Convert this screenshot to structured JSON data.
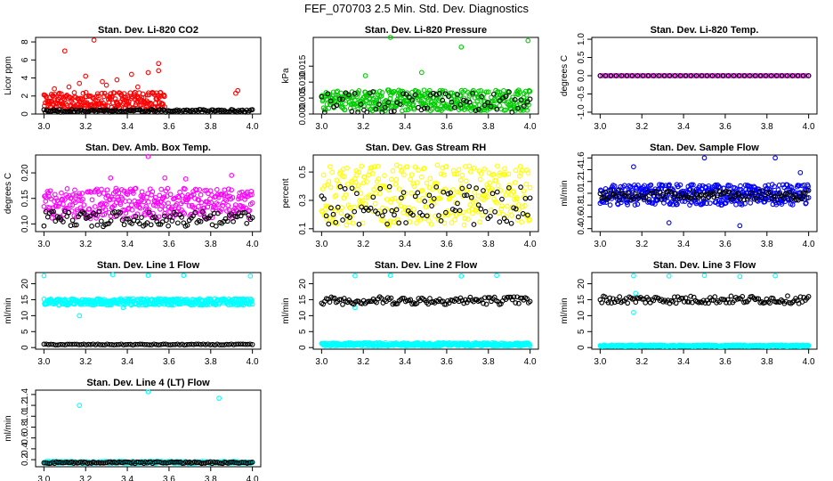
{
  "figure_title": "FEF_070703  2.5 Min. Std. Dev. Diagnostics",
  "colors": {
    "co2": "#ff0000",
    "pressure": "#00cc00",
    "temp": "#ff00ff",
    "boxtemp": "#ff00ff",
    "rh": "#ffff00",
    "flow": "#0000ff",
    "line": "#00ffff",
    "reference": "#000000"
  },
  "chart_data": [
    {
      "id": "p1",
      "type": "scatter",
      "title": "Stan. Dev. Li-820 CO2",
      "ylabel": "Licor ppm",
      "xlim": [
        3.0,
        4.0
      ],
      "xticks": [
        3.0,
        3.2,
        3.4,
        3.6,
        3.8,
        4.0
      ],
      "xtick_labels": [
        "3.0",
        "3.2",
        "3.4",
        "3.6",
        "3.8",
        "4.0"
      ],
      "ylim": [
        0,
        8.5
      ],
      "yticks": [
        0,
        2,
        4,
        6,
        8
      ],
      "ytick_labels": [
        "0",
        "2",
        "4",
        "6",
        "8"
      ],
      "color_key": "co2",
      "series": [
        {
          "color_key": "co2",
          "points": [
            [
              3.1,
              7.0
            ],
            [
              3.24,
              8.2
            ],
            [
              3.17,
              3.4
            ],
            [
              3.2,
              4.2
            ],
            [
              3.28,
              3.6
            ],
            [
              3.35,
              3.8
            ],
            [
              3.42,
              4.4
            ],
            [
              3.5,
              4.6
            ],
            [
              3.55,
              5.6
            ],
            [
              3.55,
              4.8
            ],
            [
              3.92,
              2.3
            ],
            [
              3.93,
              2.6
            ],
            [
              3.05,
              2.8
            ],
            [
              3.12,
              3.0
            ],
            [
              3.3,
              3.2
            ],
            [
              3.45,
              3.0
            ]
          ],
          "band": {
            "x_start": 3.0,
            "x_end": 3.58,
            "y_low": 0.4,
            "y_high": 2.4,
            "n": 260
          }
        },
        {
          "color_key": "reference",
          "band": {
            "x_start": 3.0,
            "x_end": 4.0,
            "y_low": 0.2,
            "y_high": 0.5,
            "n": 150
          }
        }
      ]
    },
    {
      "id": "p2",
      "type": "scatter",
      "title": "Stan. Dev. Li-820 Pressure",
      "ylabel": "kPa",
      "xlim": [
        3.0,
        4.0
      ],
      "xticks": [
        3.0,
        3.2,
        3.4,
        3.6,
        3.8,
        4.0
      ],
      "xtick_labels": [
        "3.0",
        "3.2",
        "3.4",
        "3.6",
        "3.8",
        "4.0"
      ],
      "ylim": [
        0,
        0.024
      ],
      "yticks": [
        0.0,
        0.005,
        0.01,
        0.015
      ],
      "ytick_labels": [
        "0.000",
        "0.005",
        "0.010",
        "0.015"
      ],
      "series": [
        {
          "color_key": "pressure",
          "points": [
            [
              3.33,
              0.024
            ],
            [
              3.48,
              0.013
            ],
            [
              3.67,
              0.021
            ],
            [
              3.99,
              0.023
            ],
            [
              3.21,
              0.012
            ]
          ],
          "band": {
            "x_start": 3.0,
            "x_end": 4.0,
            "y_low": 0.001,
            "y_high": 0.0075,
            "n": 420
          }
        },
        {
          "color_key": "reference",
          "band": {
            "x_start": 3.0,
            "x_end": 4.0,
            "y_low": 0.0005,
            "y_high": 0.007,
            "n": 70
          }
        }
      ]
    },
    {
      "id": "p3",
      "type": "scatter",
      "title": "Stan. Dev. Li-820 Temp.",
      "ylabel": "degrees C",
      "xlim": [
        3.0,
        4.0
      ],
      "xticks": [
        3.0,
        3.2,
        3.4,
        3.6,
        3.8,
        4.0
      ],
      "xtick_labels": [
        "3.0",
        "3.2",
        "3.4",
        "3.6",
        "3.8",
        "4.0"
      ],
      "ylim": [
        -1.05,
        1.05
      ],
      "yticks": [
        -1.0,
        -0.5,
        0.0,
        0.5,
        1.0
      ],
      "ytick_labels": [
        "-1.0",
        "-0.5",
        "0.0",
        "0.5",
        "1.0"
      ],
      "series": [
        {
          "color_key": "temp",
          "band": {
            "x_start": 3.0,
            "x_end": 4.0,
            "y_low": 0.0,
            "y_high": 0.0,
            "n": 90
          }
        },
        {
          "color_key": "reference",
          "band": {
            "x_start": 3.0,
            "x_end": 4.0,
            "y_low": 0.0,
            "y_high": 0.0,
            "n": 40
          }
        }
      ]
    },
    {
      "id": "p4",
      "type": "scatter",
      "title": "Stan. Dev. Amb. Box Temp.",
      "ylabel": "degrees C",
      "xlim": [
        3.0,
        4.0
      ],
      "xticks": [
        3.0,
        3.2,
        3.4,
        3.6,
        3.8,
        4.0
      ],
      "xtick_labels": [
        "3.0",
        "3.2",
        "3.4",
        "3.6",
        "3.8",
        "4.0"
      ],
      "ylim": [
        0.085,
        0.235
      ],
      "yticks": [
        0.1,
        0.15,
        0.2
      ],
      "ytick_labels": [
        "0.10",
        "0.15",
        "0.20"
      ],
      "series": [
        {
          "color_key": "boxtemp",
          "points": [
            [
              3.5,
              0.232
            ],
            [
              3.9,
              0.195
            ],
            [
              3.32,
              0.19
            ],
            [
              3.68,
              0.188
            ],
            [
              3.58,
              0.19
            ]
          ],
          "band": {
            "x_start": 3.0,
            "x_end": 4.0,
            "y_low": 0.11,
            "y_high": 0.17,
            "n": 360
          }
        },
        {
          "color_key": "reference",
          "band": {
            "x_start": 3.0,
            "x_end": 4.0,
            "y_low": 0.095,
            "y_high": 0.125,
            "n": 110
          }
        }
      ]
    },
    {
      "id": "p5",
      "type": "scatter",
      "title": "Stan. Dev. Gas Stream RH",
      "ylabel": "percent",
      "xlim": [
        3.0,
        4.0
      ],
      "xticks": [
        3.0,
        3.2,
        3.4,
        3.6,
        3.8,
        4.0
      ],
      "xtick_labels": [
        "3.0",
        "3.2",
        "3.4",
        "3.6",
        "3.8",
        "4.0"
      ],
      "ylim": [
        0.08,
        0.62
      ],
      "yticks": [
        0.1,
        0.3,
        0.5
      ],
      "ytick_labels": [
        "0.1",
        "0.3",
        "0.5"
      ],
      "series": [
        {
          "color_key": "rh",
          "band": {
            "x_start": 3.0,
            "x_end": 4.0,
            "y_low": 0.12,
            "y_high": 0.55,
            "n": 320
          }
        },
        {
          "color_key": "reference",
          "band": {
            "x_start": 3.0,
            "x_end": 4.0,
            "y_low": 0.13,
            "y_high": 0.4,
            "n": 90
          }
        }
      ]
    },
    {
      "id": "p6",
      "type": "scatter",
      "title": "Stan. Dev. Sample Flow",
      "ylabel": "ml/min",
      "xlim": [
        3.0,
        4.0
      ],
      "xticks": [
        3.0,
        3.2,
        3.4,
        3.6,
        3.8,
        4.0
      ],
      "xtick_labels": [
        "3.0",
        "3.2",
        "3.4",
        "3.6",
        "3.8",
        "4.0"
      ],
      "ylim": [
        0.35,
        1.65
      ],
      "yticks": [
        0.4,
        0.6,
        0.8,
        1.0,
        1.2,
        1.4,
        1.6
      ],
      "ytick_labels": [
        "0.4",
        "0.6",
        "0.8",
        "1.0",
        "1.2",
        "1.4",
        "1.6"
      ],
      "series": [
        {
          "color_key": "flow",
          "points": [
            [
              3.16,
              1.45
            ],
            [
              3.5,
              1.6
            ],
            [
              3.84,
              1.6
            ],
            [
              3.67,
              0.45
            ],
            [
              3.33,
              0.5
            ],
            [
              3.96,
              1.35
            ]
          ],
          "band": {
            "x_start": 3.0,
            "x_end": 4.0,
            "y_low": 0.8,
            "y_high": 1.15,
            "n": 420
          }
        },
        {
          "color_key": "reference",
          "band": {
            "x_start": 3.0,
            "x_end": 4.0,
            "y_low": 0.88,
            "y_high": 1.05,
            "n": 120
          }
        }
      ]
    },
    {
      "id": "p7",
      "type": "scatter",
      "title": "Stan. Dev. Line 1 Flow",
      "ylabel": "ml/min",
      "xlim": [
        3.0,
        4.0
      ],
      "xticks": [
        3.0,
        3.2,
        3.4,
        3.6,
        3.8,
        4.0
      ],
      "xtick_labels": [
        "3.0",
        "3.2",
        "3.4",
        "3.6",
        "3.8",
        "4.0"
      ],
      "ylim": [
        -0.5,
        23.5
      ],
      "yticks": [
        0,
        5,
        10,
        15,
        20
      ],
      "ytick_labels": [
        "0",
        "5",
        "10",
        "15",
        "20"
      ],
      "series": [
        {
          "color_key": "line",
          "points": [
            [
              3.0,
              22.5
            ],
            [
              3.33,
              22.8
            ],
            [
              3.5,
              22.6
            ],
            [
              3.67,
              22.6
            ],
            [
              3.99,
              22.4
            ],
            [
              3.17,
              10.0
            ],
            [
              3.38,
              12.5
            ]
          ],
          "band": {
            "x_start": 3.0,
            "x_end": 4.0,
            "y_low": 13.3,
            "y_high": 15.3,
            "n": 400
          }
        },
        {
          "color_key": "reference",
          "band": {
            "x_start": 3.0,
            "x_end": 4.0,
            "y_low": 0.8,
            "y_high": 1.1,
            "n": 90
          }
        }
      ]
    },
    {
      "id": "p8",
      "type": "scatter",
      "title": "Stan. Dev. Line 2 Flow",
      "ylabel": "ml/min",
      "xlim": [
        3.0,
        4.0
      ],
      "xticks": [
        3.0,
        3.2,
        3.4,
        3.6,
        3.8,
        4.0
      ],
      "xtick_labels": [
        "3.0",
        "3.2",
        "3.4",
        "3.6",
        "3.8",
        "4.0"
      ],
      "ylim": [
        -0.5,
        23.5
      ],
      "yticks": [
        0,
        5,
        10,
        15,
        20
      ],
      "ytick_labels": [
        "0",
        "5",
        "10",
        "15",
        "20"
      ],
      "series": [
        {
          "color_key": "line",
          "points": [
            [
              3.16,
              22.5
            ],
            [
              3.33,
              22.6
            ],
            [
              3.67,
              22.4
            ],
            [
              3.84,
              22.6
            ],
            [
              3.16,
              12.5
            ]
          ],
          "band": {
            "x_start": 3.0,
            "x_end": 4.0,
            "y_low": 0.5,
            "y_high": 1.5,
            "n": 380
          }
        },
        {
          "color_key": "reference",
          "band": {
            "x_start": 3.0,
            "x_end": 4.0,
            "y_low": 13.5,
            "y_high": 16.0,
            "n": 130
          }
        }
      ]
    },
    {
      "id": "p9",
      "type": "scatter",
      "title": "Stan. Dev. Line 3 Flow",
      "ylabel": "ml/min",
      "xlim": [
        3.0,
        4.0
      ],
      "xticks": [
        3.0,
        3.2,
        3.4,
        3.6,
        3.8,
        4.0
      ],
      "xtick_labels": [
        "3.0",
        "3.2",
        "3.4",
        "3.6",
        "3.8",
        "4.0"
      ],
      "ylim": [
        -0.5,
        23.5
      ],
      "yticks": [
        0,
        5,
        10,
        15,
        20
      ],
      "ytick_labels": [
        "0",
        "5",
        "10",
        "15",
        "20"
      ],
      "series": [
        {
          "color_key": "line",
          "points": [
            [
              3.16,
              22.5
            ],
            [
              3.33,
              22.4
            ],
            [
              3.5,
              22.6
            ],
            [
              3.84,
              22.5
            ],
            [
              3.16,
              11.0
            ],
            [
              3.17,
              17.0
            ],
            [
              3.67,
              22.3
            ]
          ],
          "band": {
            "x_start": 3.0,
            "x_end": 4.0,
            "y_low": 0.3,
            "y_high": 0.8,
            "n": 380
          }
        },
        {
          "color_key": "reference",
          "band": {
            "x_start": 3.0,
            "x_end": 4.0,
            "y_low": 13.8,
            "y_high": 16.2,
            "n": 130
          }
        }
      ]
    },
    {
      "id": "p10",
      "type": "scatter",
      "title": "Stan. Dev. Line 4 (LT) Flow",
      "ylabel": "ml/min",
      "xlim": [
        3.0,
        4.0
      ],
      "xticks": [
        3.0,
        3.2,
        3.4,
        3.6,
        3.8,
        4.0
      ],
      "xtick_labels": [
        "3.0",
        "3.2",
        "3.4",
        "3.6",
        "3.8",
        "4.0"
      ],
      "ylim": [
        0.07,
        1.48
      ],
      "yticks": [
        0.2,
        0.4,
        0.6,
        0.8,
        1.0,
        1.2,
        1.4
      ],
      "ytick_labels": [
        "0.2",
        "0.4",
        "0.6",
        "0.8",
        "1.0",
        "1.2",
        "1.4"
      ],
      "series": [
        {
          "color_key": "line",
          "points": [
            [
              3.17,
              1.2
            ],
            [
              3.5,
              1.45
            ],
            [
              3.84,
              1.33
            ]
          ],
          "band": {
            "x_start": 3.0,
            "x_end": 4.0,
            "y_low": 0.13,
            "y_high": 0.17,
            "n": 260
          }
        },
        {
          "color_key": "reference",
          "band": {
            "x_start": 3.0,
            "x_end": 4.0,
            "y_low": 0.13,
            "y_high": 0.16,
            "n": 120
          }
        }
      ]
    }
  ]
}
